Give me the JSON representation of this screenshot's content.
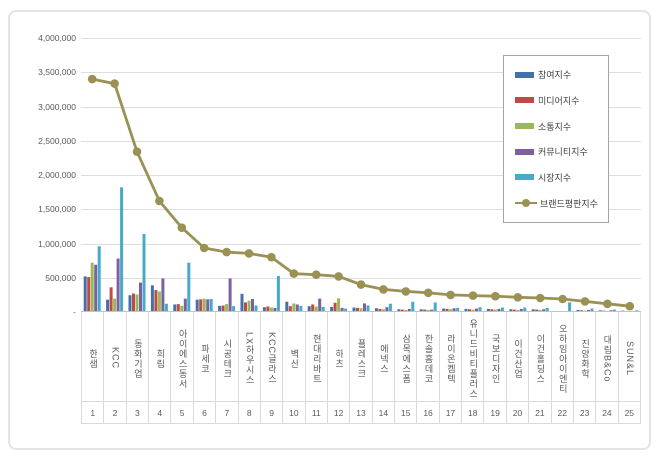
{
  "chart_data": {
    "type": "combo-bar-line",
    "title": "",
    "categories": [
      "한샘",
      "KCC",
      "동화기업",
      "희림",
      "아이에스동서",
      "파세코",
      "시공테크",
      "LX하우시스",
      "KCC글라스",
      "벽산",
      "현대리바트",
      "하츠",
      "플레스크",
      "에넥스",
      "삼목에스폼",
      "한솔홈데코",
      "라이온켐텍",
      "유니드비티플러스",
      "국보디자인",
      "이건산업",
      "이건홀딩스",
      "오하임아이엔티",
      "진양화학",
      "대림B&Co",
      "SUN&L"
    ],
    "ranks": [
      "1",
      "2",
      "3",
      "4",
      "5",
      "6",
      "7",
      "8",
      "9",
      "10",
      "11",
      "12",
      "13",
      "14",
      "15",
      "16",
      "17",
      "18",
      "19",
      "20",
      "21",
      "22",
      "23",
      "24",
      "25"
    ],
    "series": [
      {
        "name": "참여지수",
        "kind": "bar",
        "color": "#4472A8",
        "values": [
          520000,
          180000,
          245000,
          390000,
          110000,
          180000,
          90000,
          265000,
          70000,
          150000,
          85000,
          75000,
          65000,
          55000,
          40000,
          40000,
          50000,
          45000,
          45000,
          40000,
          40000,
          15000,
          30000,
          25000,
          20000
        ]
      },
      {
        "name": "미디어지수",
        "kind": "bar",
        "color": "#BE4B48",
        "values": [
          510000,
          360000,
          270000,
          320000,
          115000,
          185000,
          95000,
          140000,
          80000,
          85000,
          110000,
          135000,
          60000,
          45000,
          35000,
          35000,
          45000,
          40000,
          40000,
          35000,
          35000,
          10000,
          25000,
          20000,
          15000
        ]
      },
      {
        "name": "소통지수",
        "kind": "bar",
        "color": "#98B954",
        "values": [
          720000,
          195000,
          255000,
          300000,
          90000,
          195000,
          115000,
          165000,
          65000,
          125000,
          80000,
          200000,
          55000,
          40000,
          30000,
          30000,
          40000,
          35000,
          35000,
          30000,
          30000,
          10000,
          20000,
          15000,
          10000
        ]
      },
      {
        "name": "커뮤니티지수",
        "kind": "bar",
        "color": "#7D60A0",
        "values": [
          690000,
          780000,
          430000,
          490000,
          195000,
          185000,
          490000,
          190000,
          60000,
          110000,
          195000,
          60000,
          125000,
          70000,
          45000,
          35000,
          55000,
          50000,
          45000,
          45000,
          40000,
          15000,
          30000,
          25000,
          15000
        ]
      },
      {
        "name": "시장지수",
        "kind": "bar",
        "color": "#46AAC8",
        "values": [
          960000,
          1820000,
          1140000,
          120000,
          720000,
          190000,
          85000,
          95000,
          525000,
          90000,
          75000,
          50000,
          95000,
          120000,
          150000,
          140000,
          60000,
          70000,
          65000,
          65000,
          60000,
          140000,
          50000,
          35000,
          25000
        ]
      },
      {
        "name": "브랜드평판지수",
        "kind": "line",
        "color": "#9A9155",
        "values": [
          3400000,
          3335000,
          2340000,
          1620000,
          1230000,
          935000,
          875000,
          855000,
          800000,
          560000,
          545000,
          520000,
          400000,
          330000,
          300000,
          280000,
          250000,
          240000,
          230000,
          215000,
          205000,
          190000,
          155000,
          120000,
          85000
        ]
      }
    ],
    "y_axis": {
      "min": 0,
      "max": 4000000,
      "tick_interval": 500000,
      "ticks": [
        {
          "value": 0,
          "label": "-"
        },
        {
          "value": 500000,
          "label": "500,000"
        },
        {
          "value": 1000000,
          "label": "1,000,000"
        },
        {
          "value": 1500000,
          "label": "1,500,000"
        },
        {
          "value": 2000000,
          "label": "2,000,000"
        },
        {
          "value": 2500000,
          "label": "2,500,000"
        },
        {
          "value": 3000000,
          "label": "3,000,000"
        },
        {
          "value": 3500000,
          "label": "3,500,000"
        },
        {
          "value": 4000000,
          "label": "4,000,000"
        }
      ]
    },
    "grid": true,
    "legend_position": "right-top"
  }
}
